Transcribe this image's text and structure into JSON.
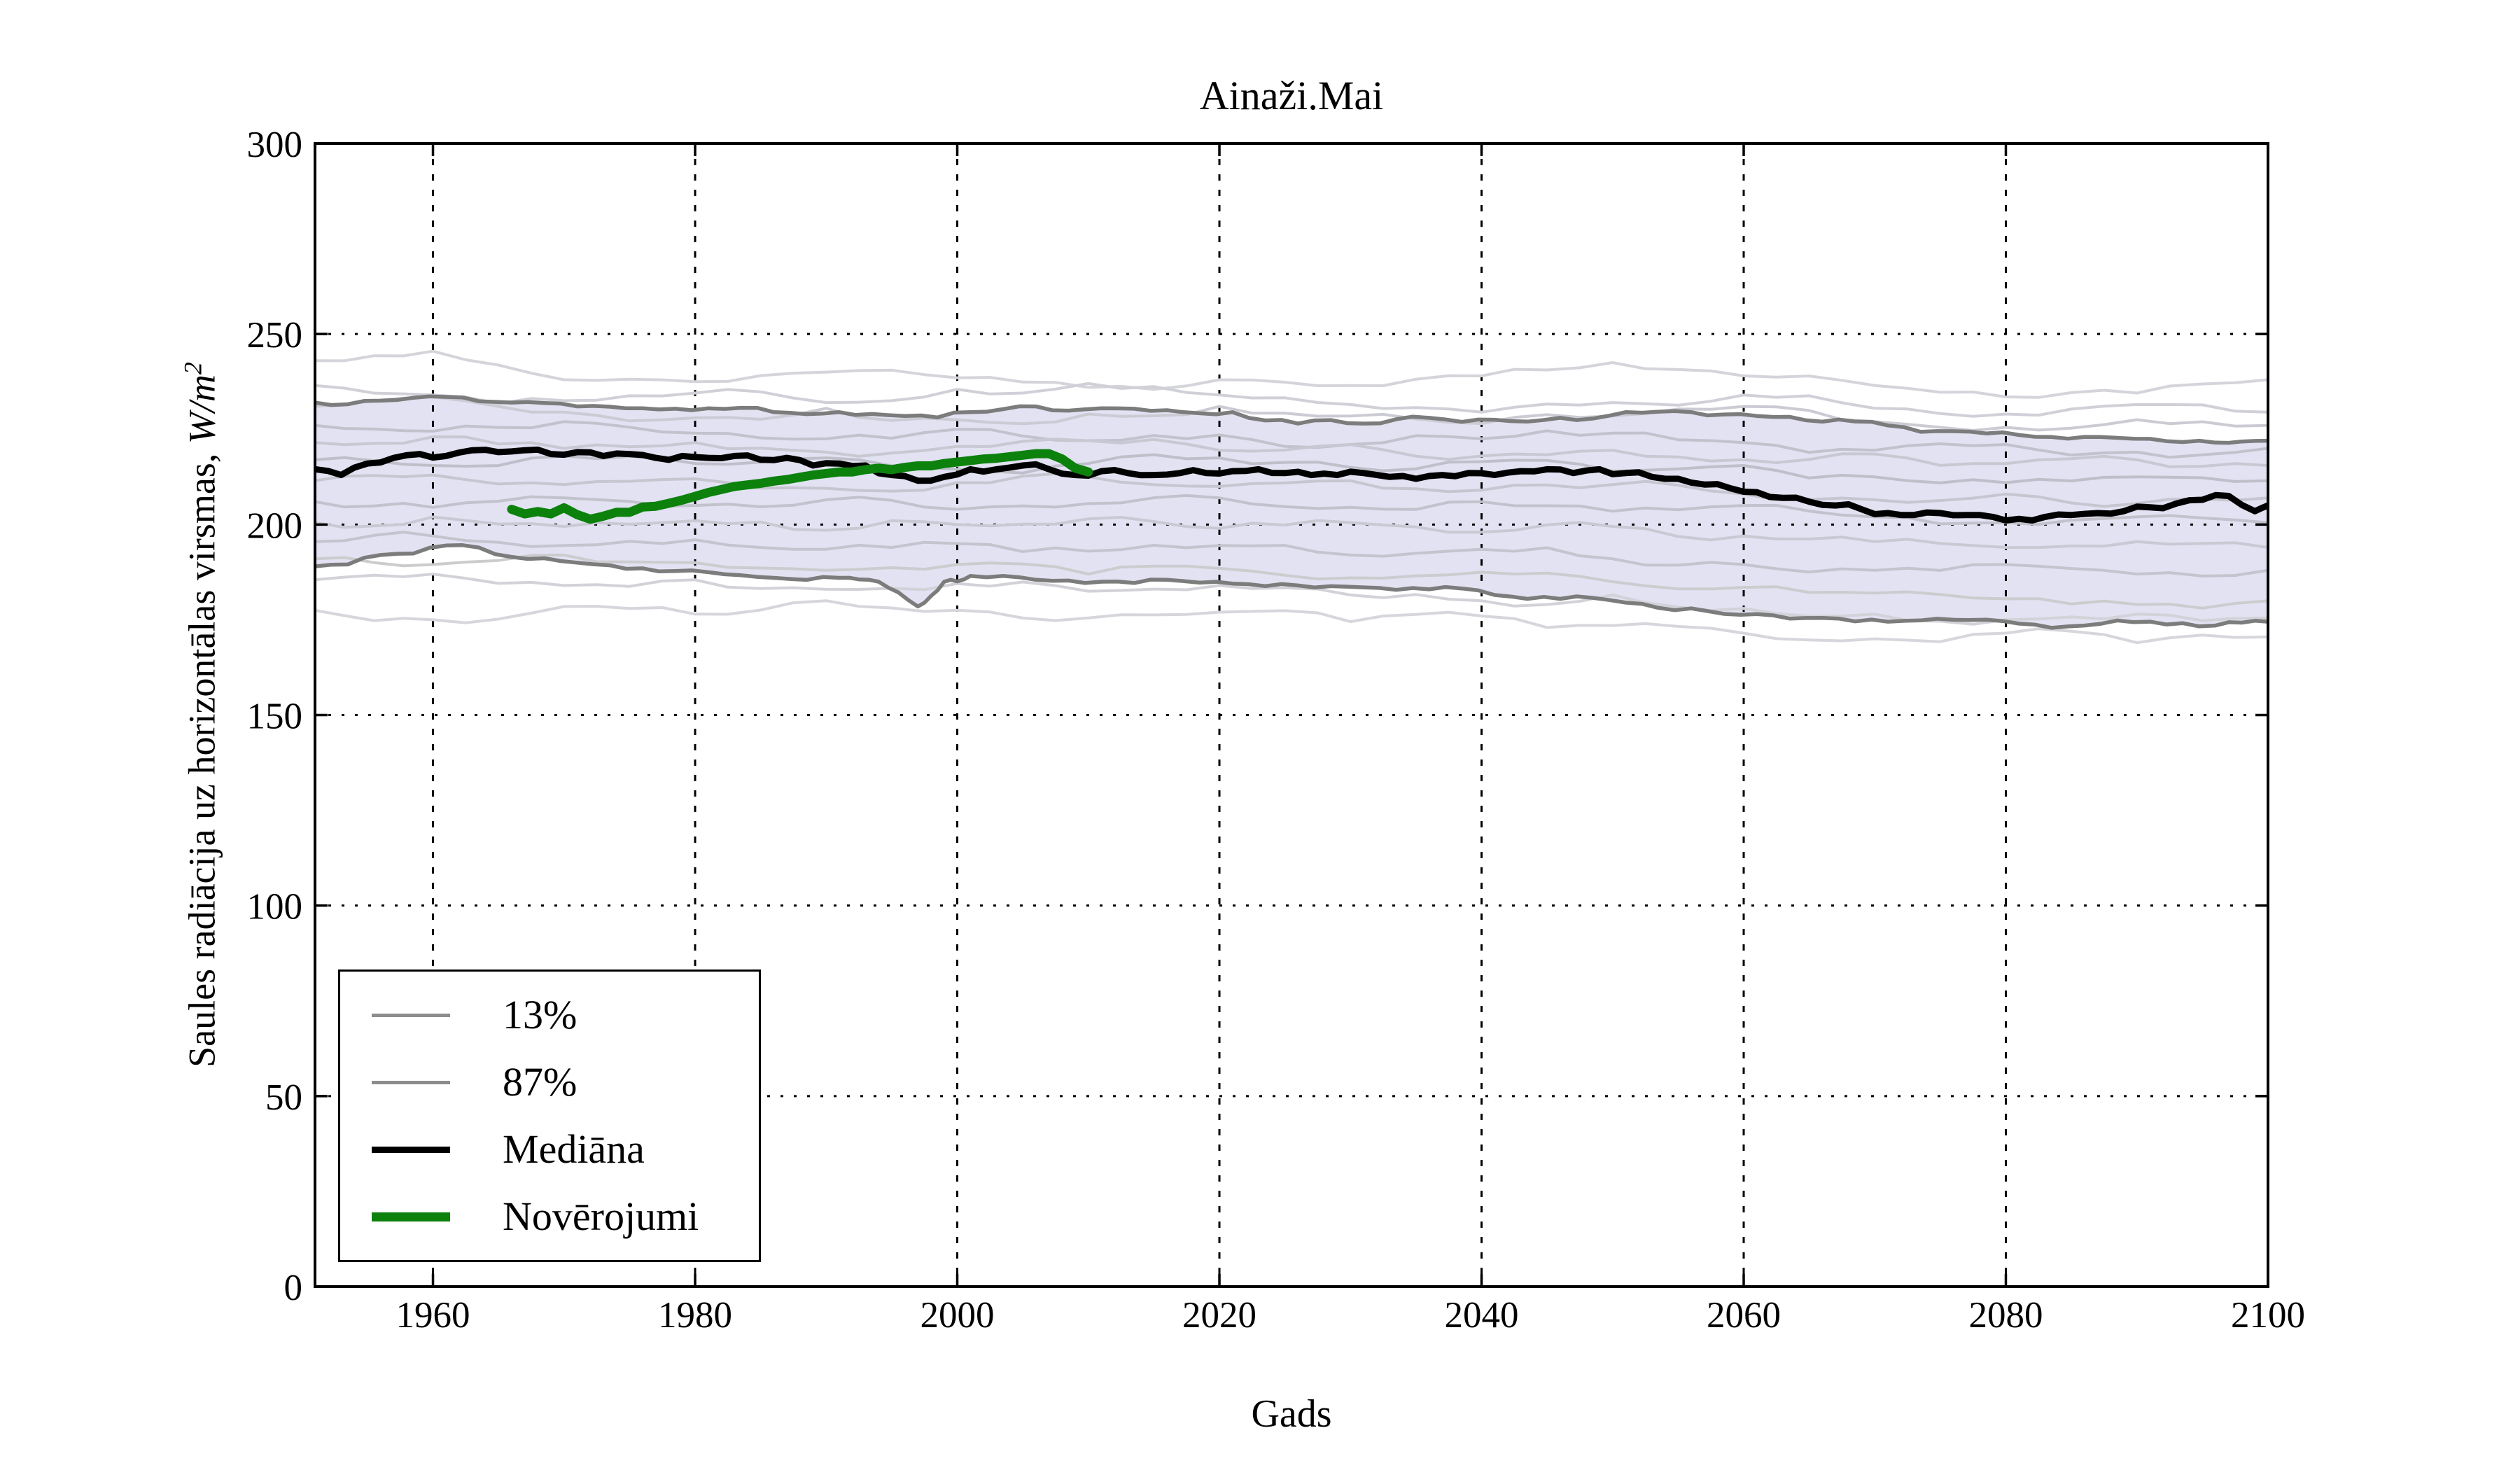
{
  "figure": {
    "title": "Ainaži.Mai",
    "xlabel": "Gads",
    "ylabel_prefix": "Saules radiācija uz horizontālas virsmas, ",
    "ylabel_math": "W/m",
    "ylabel_sup": "2"
  },
  "chart_data": {
    "type": "line",
    "title": "Ainaži.Mai",
    "xlabel": "Gads",
    "ylabel": "Saules radiācija uz horizontālas virsmas, W/m²",
    "xlim": [
      1951,
      2100
    ],
    "ylim": [
      0,
      300
    ],
    "xticks": [
      1960,
      1980,
      2000,
      2020,
      2040,
      2060,
      2080,
      2100
    ],
    "xticklabels": [
      "1960",
      "1980",
      "2000",
      "2020",
      "2040",
      "2060",
      "2080",
      "2100"
    ],
    "yticks": [
      0,
      50,
      100,
      150,
      200,
      250,
      300
    ],
    "yticklabels": [
      "0",
      "50",
      "100",
      "150",
      "200",
      "250",
      "300"
    ],
    "grid": {
      "vertical_style": "dashed",
      "horizontal_style": "dotted",
      "color": "#000000"
    },
    "axes_color": "#000000",
    "band": {
      "name": "13-87% percentīļu josla",
      "fill_color": "#e2e2f3",
      "edge_color": "#7c7c7c",
      "edge_width": 5.5,
      "upper": {
        "name": "87%",
        "years": [
          1951,
          1956,
          1961,
          1966,
          1971,
          1976,
          1981,
          1986,
          1991,
          1996,
          2001,
          2006,
          2011,
          2016,
          2021,
          2026,
          2031,
          2036,
          2041,
          2046,
          2051,
          2056,
          2061,
          2066,
          2071,
          2076,
          2081,
          2086,
          2091,
          2096,
          2100
        ],
        "values": [
          232,
          232.5,
          233.5,
          232,
          231,
          230.5,
          230.5,
          229.5,
          229.5,
          228.5,
          229.5,
          231,
          230.5,
          230,
          229.5,
          226.5,
          226.5,
          228,
          227.5,
          228,
          229.5,
          229.5,
          228.5,
          227,
          226,
          224.5,
          223.5,
          223,
          222.5,
          221.5,
          222
        ],
        "seed": 8
      },
      "lower": {
        "name": "13%",
        "years": [
          1951,
          1956,
          1961,
          1966,
          1971,
          1976,
          1981,
          1986,
          1991,
          1994,
          1997,
          1999,
          2001,
          2006,
          2011,
          2016,
          2021,
          2026,
          2031,
          2036,
          2041,
          2046,
          2051,
          2056,
          2061,
          2066,
          2071,
          2076,
          2081,
          2086,
          2091,
          2096,
          2100
        ],
        "values": [
          189,
          192,
          194.5,
          191.5,
          190,
          188.5,
          187.5,
          186,
          186,
          185,
          178.5,
          185,
          186.5,
          185.5,
          185,
          185.5,
          184.5,
          184,
          183.5,
          183,
          181.5,
          180.5,
          179.5,
          178,
          176.5,
          175.5,
          174.5,
          175,
          174,
          173.5,
          174.5,
          173.5,
          174.5
        ],
        "seed": 7
      }
    },
    "series": [
      {
        "name": "Mediāna",
        "color": "#000000",
        "width": 9,
        "seed": 5,
        "points": [
          [
            1951,
            214.5
          ],
          [
            1953,
            213
          ],
          [
            1955,
            216
          ],
          [
            1957,
            217.5
          ],
          [
            1959,
            218.5
          ],
          [
            1961,
            218
          ],
          [
            1963,
            219.5
          ],
          [
            1965,
            219
          ],
          [
            1967,
            219.5
          ],
          [
            1969,
            218.5
          ],
          [
            1971,
            219
          ],
          [
            1973,
            218
          ],
          [
            1975,
            218.5
          ],
          [
            1977,
            217.5
          ],
          [
            1979,
            218
          ],
          [
            1981,
            217.5
          ],
          [
            1983,
            218
          ],
          [
            1985,
            217
          ],
          [
            1987,
            217.5
          ],
          [
            1989,
            215.5
          ],
          [
            1991,
            216
          ],
          [
            1993,
            215.5
          ],
          [
            1995,
            213
          ],
          [
            1997,
            211.5
          ],
          [
            1999,
            212.5
          ],
          [
            2001,
            214.5
          ],
          [
            2003,
            214.5
          ],
          [
            2005,
            215.5
          ],
          [
            2007,
            214.5
          ],
          [
            2009,
            213
          ],
          [
            2011,
            214
          ],
          [
            2013,
            213.5
          ],
          [
            2015,
            213
          ],
          [
            2017,
            213.5
          ],
          [
            2019,
            213.5
          ],
          [
            2021,
            214
          ],
          [
            2023,
            214.5
          ],
          [
            2025,
            213.5
          ],
          [
            2027,
            213
          ],
          [
            2029,
            213
          ],
          [
            2031,
            213.5
          ],
          [
            2033,
            212.5
          ],
          [
            2035,
            212
          ],
          [
            2037,
            213
          ],
          [
            2039,
            213.5
          ],
          [
            2041,
            213
          ],
          [
            2043,
            214
          ],
          [
            2045,
            214.5
          ],
          [
            2047,
            213.5
          ],
          [
            2049,
            214.5
          ],
          [
            2051,
            213.5
          ],
          [
            2053,
            212.5
          ],
          [
            2055,
            212
          ],
          [
            2057,
            210.5
          ],
          [
            2059,
            209.5
          ],
          [
            2061,
            208.5
          ],
          [
            2063,
            207
          ],
          [
            2065,
            206
          ],
          [
            2067,
            205
          ],
          [
            2069,
            204
          ],
          [
            2071,
            203
          ],
          [
            2073,
            202.5
          ],
          [
            2075,
            203
          ],
          [
            2077,
            202.5
          ],
          [
            2079,
            202
          ],
          [
            2081,
            201.5
          ],
          [
            2083,
            202
          ],
          [
            2085,
            202.5
          ],
          [
            2087,
            203
          ],
          [
            2089,
            203.5
          ],
          [
            2091,
            204.5
          ],
          [
            2093,
            205.5
          ],
          [
            2095,
            206.5
          ],
          [
            2097,
            207.5
          ],
          [
            2099,
            203.5
          ],
          [
            2100,
            205
          ]
        ]
      },
      {
        "name": "Novērojumi",
        "color": "#0c810c",
        "width": 13,
        "seed": 0,
        "points": [
          [
            1966,
            204
          ],
          [
            1967,
            202.8
          ],
          [
            1968,
            203.4
          ],
          [
            1969,
            202.8
          ],
          [
            1970,
            204.4
          ],
          [
            1971,
            202.6
          ],
          [
            1972,
            201.4
          ],
          [
            1973,
            202.2
          ],
          [
            1974,
            203.2
          ],
          [
            1975,
            203.2
          ],
          [
            1976,
            204.6
          ],
          [
            1977,
            204.8
          ],
          [
            1978,
            205.6
          ],
          [
            1979,
            206.4
          ],
          [
            1980,
            207.4
          ],
          [
            1981,
            208.4
          ],
          [
            1982,
            209.2
          ],
          [
            1983,
            210
          ],
          [
            1984,
            210.4
          ],
          [
            1985,
            210.8
          ],
          [
            1986,
            211.4
          ],
          [
            1987,
            211.8
          ],
          [
            1988,
            212.4
          ],
          [
            1989,
            213
          ],
          [
            1990,
            213.4
          ],
          [
            1991,
            213.8
          ],
          [
            1992,
            213.8
          ],
          [
            1993,
            214.4
          ],
          [
            1994,
            214.8
          ],
          [
            1995,
            214.4
          ],
          [
            1996,
            215
          ],
          [
            1997,
            215.4
          ],
          [
            1998,
            215.4
          ],
          [
            1999,
            216
          ],
          [
            2000,
            216.4
          ],
          [
            2001,
            216.8
          ],
          [
            2002,
            217.2
          ],
          [
            2003,
            217.4
          ],
          [
            2004,
            217.8
          ],
          [
            2005,
            218.2
          ],
          [
            2006,
            218.6
          ],
          [
            2007,
            218.6
          ],
          [
            2008,
            217.2
          ],
          [
            2009,
            214.8
          ],
          [
            2010,
            213.8
          ]
        ]
      }
    ],
    "ensemble": {
      "description": "atsevišķu modeļu ansambļa līnijas (aptuvenas)",
      "years": [
        1951,
        1960,
        1970,
        1980,
        1990,
        2000,
        2010,
        2020,
        2030,
        2040,
        2050,
        2060,
        2070,
        2080,
        2090,
        2100
      ],
      "width": 4,
      "wiggle_amplitude": 1.8,
      "lines": [
        {
          "color": "#d4d4db",
          "seed": 11,
          "values": [
            243,
            245.5,
            238,
            237.5,
            240,
            238.5,
            236,
            238,
            236.5,
            239,
            242.5,
            239,
            236.5,
            233.5,
            234.5,
            238
          ]
        },
        {
          "color": "#d0d0d8",
          "seed": 12,
          "values": [
            236.5,
            234,
            232.5,
            234.5,
            232,
            235.5,
            237,
            234,
            231.5,
            229.5,
            232,
            234,
            230.5,
            229,
            231.5,
            229.5
          ]
        },
        {
          "color": "#cbcbd4",
          "seed": 13,
          "values": [
            231,
            233.5,
            229.5,
            228,
            230.5,
            227.5,
            229,
            231,
            228.5,
            226.5,
            228.5,
            231,
            227,
            225.5,
            227.5,
            226
          ]
        },
        {
          "color": "#c2c2cd",
          "seed": 14,
          "values": [
            226,
            224.5,
            227,
            224,
            222.5,
            225,
            222,
            223.5,
            221,
            222.5,
            224,
            221.5,
            219.5,
            221,
            219,
            220
          ]
        },
        {
          "color": "#c8c8d2",
          "seed": 15,
          "values": [
            221.5,
            223,
            220,
            221.5,
            219,
            220.5,
            222,
            219.5,
            221,
            218,
            219.5,
            217,
            218.5,
            216,
            217,
            215.5
          ]
        },
        {
          "color": "#bfbfca",
          "seed": 16,
          "values": [
            217,
            215.5,
            218,
            216,
            217.5,
            214.5,
            216,
            217.5,
            215,
            216.5,
            214,
            215.5,
            212.5,
            211,
            212.5,
            211.5
          ]
        },
        {
          "color": "#c6c6d0",
          "seed": 17,
          "values": [
            211.5,
            213,
            210.5,
            212,
            209.5,
            211,
            212.5,
            210,
            211.5,
            209,
            210.5,
            208,
            206.5,
            208,
            205.5,
            207
          ]
        },
        {
          "color": "#c2c2cd",
          "seed": 18,
          "values": [
            206,
            204.5,
            207,
            205,
            206.5,
            204,
            205.5,
            207,
            204.5,
            206,
            203.5,
            205,
            202,
            200.5,
            202,
            200.5
          ]
        },
        {
          "color": "#c9c9d3",
          "seed": 19,
          "values": [
            200.5,
            202,
            199.5,
            201,
            198.5,
            200,
            201.5,
            199,
            200.5,
            198,
            199.5,
            197,
            195.5,
            194,
            195.5,
            194
          ]
        },
        {
          "color": "#c4c4ce",
          "seed": 20,
          "values": [
            195.5,
            197,
            194.5,
            196,
            193.5,
            195,
            193,
            194.5,
            192,
            193.5,
            191,
            189.5,
            188,
            189.5,
            187,
            188
          ]
        },
        {
          "color": "#cccccf",
          "seed": 21,
          "values": [
            191,
            189.5,
            192,
            190,
            188,
            189.5,
            187,
            188.5,
            186,
            187.5,
            185,
            183.5,
            182,
            180.5,
            179,
            180
          ]
        },
        {
          "color": "#d2d2d9",
          "seed": 22,
          "values": [
            185.5,
            187,
            184,
            185.5,
            183,
            184.5,
            182.5,
            184,
            181.5,
            180,
            181.5,
            178,
            176.5,
            175,
            176.5,
            175.5
          ]
        },
        {
          "color": "#d6d6dc",
          "seed": 23,
          "values": [
            177.5,
            175,
            178.5,
            176.5,
            180,
            177.5,
            175.5,
            177,
            174.5,
            176,
            173.5,
            171.5,
            170,
            171.5,
            169,
            170.5
          ]
        }
      ]
    },
    "legend": {
      "position": "lower-left",
      "entries": [
        {
          "label": "13%",
          "color": "#8c8c8c",
          "thickness": 5
        },
        {
          "label": "87%",
          "color": "#8c8c8c",
          "thickness": 5
        },
        {
          "label": "Mediāna",
          "color": "#000000",
          "thickness": 9
        },
        {
          "label": "Novērojumi",
          "color": "#0c810c",
          "thickness": 13
        }
      ]
    }
  }
}
